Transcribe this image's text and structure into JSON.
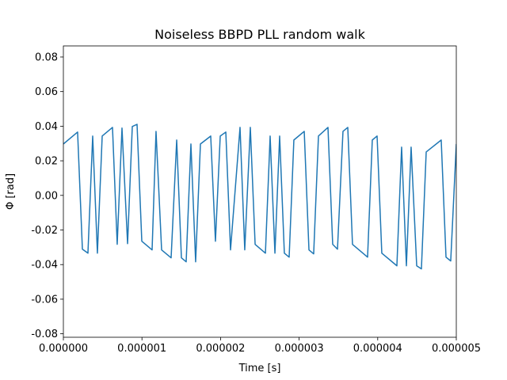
{
  "chart_data": {
    "type": "line",
    "title": "Noiseless BBPD PLL random walk",
    "x_label": "Time [s]",
    "y_label": "Φ [rad]",
    "xlim": [
      0,
      5e-06
    ],
    "ylim": [
      -0.082,
      0.0864
    ],
    "xticks": [
      {
        "value": 0,
        "label": "0.000000"
      },
      {
        "value": 1e-06,
        "label": "0.000001"
      },
      {
        "value": 2e-06,
        "label": "0.000002"
      },
      {
        "value": 3e-06,
        "label": "0.000003"
      },
      {
        "value": 4e-06,
        "label": "0.000004"
      },
      {
        "value": 5e-06,
        "label": "0.000005"
      }
    ],
    "yticks": [
      -0.08,
      -0.06,
      -0.04,
      -0.02,
      {
        "value": 0,
        "label": "0.00"
      },
      0.02,
      0.04,
      0.06,
      0.08
    ],
    "x": [
      0,
      1.81e-07,
      2.42e-07,
      3.125e-07,
      3.73e-07,
      4.33e-07,
      4.94e-07,
      6.25e-07,
      6.85e-07,
      7.46e-07,
      8.17e-07,
      8.77e-07,
      9.375e-07,
      9.98e-07,
      1.129e-06,
      1.179e-06,
      1.25e-06,
      1.371e-06,
      1.442e-06,
      1.502e-06,
      1.5625e-06,
      1.623e-06,
      1.683e-06,
      1.744e-06,
      1.875e-06,
      1.935e-06,
      1.996e-06,
      2.067e-06,
      2.127e-06,
      2.248e-06,
      2.308e-06,
      2.379e-06,
      2.44e-06,
      2.571e-06,
      2.631e-06,
      2.692e-06,
      2.752e-06,
      2.812e-06,
      2.873e-06,
      2.933e-06,
      3.065e-06,
      3.125e-06,
      3.185e-06,
      3.246e-06,
      3.367e-06,
      3.427e-06,
      3.488e-06,
      3.558e-06,
      3.619e-06,
      3.679e-06,
      3.871e-06,
      3.931e-06,
      3.992e-06,
      4.052e-06,
      4.244e-06,
      4.304e-06,
      4.365e-06,
      4.425e-06,
      4.496e-06,
      4.556e-06,
      4.617e-06,
      4.808e-06,
      4.869e-06,
      4.929e-06,
      5e-06
    ],
    "series": [
      {
        "color": "#1f77b4",
        "values": [
          0.0297,
          0.0366,
          -0.0311,
          -0.0334,
          0.0343,
          -0.0334,
          0.0343,
          0.0393,
          -0.0283,
          0.0389,
          -0.0279,
          0.0398,
          0.0411,
          -0.0265,
          -0.0315,
          0.037,
          -0.0315,
          -0.0361,
          0.032,
          -0.0361,
          -0.0384,
          0.0297,
          -0.0384,
          0.0297,
          0.0343,
          -0.0265,
          0.0343,
          0.0366,
          -0.0315,
          0.0393,
          -0.0315,
          0.0393,
          -0.0283,
          -0.0334,
          0.0343,
          -0.0334,
          0.0343,
          -0.0334,
          -0.0357,
          0.032,
          0.037,
          -0.0315,
          -0.0338,
          0.0343,
          0.0393,
          -0.0283,
          -0.0311,
          0.037,
          0.0393,
          -0.0283,
          -0.0357,
          0.032,
          0.0343,
          -0.0334,
          -0.0407,
          0.0279,
          -0.0407,
          0.0279,
          -0.0407,
          -0.0425,
          0.0251,
          0.032,
          -0.0357,
          -0.0379,
          0.0297
        ]
      }
    ]
  }
}
